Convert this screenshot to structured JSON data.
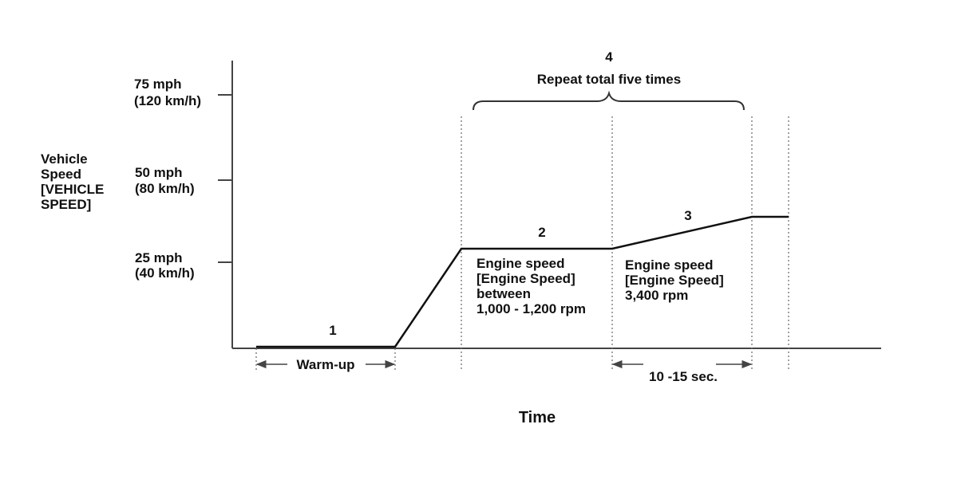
{
  "colors": {
    "line": "#111111",
    "axis": "#444444",
    "dotted": "#666666",
    "background": "#ffffff"
  },
  "axis": {
    "y_title": [
      "Vehicle",
      "Speed",
      "[VEHICLE",
      "SPEED]"
    ],
    "x_title": "Time",
    "ticks": [
      {
        "mph": "75 mph",
        "kmh": "(120 km/h)"
      },
      {
        "mph": "50 mph",
        "kmh": "(80 km/h)"
      },
      {
        "mph": "25 mph",
        "kmh": "(40 km/h)"
      }
    ]
  },
  "steps": {
    "step1": {
      "number": "1",
      "label": "Warm-up"
    },
    "step2": {
      "number": "2",
      "text": [
        "Engine speed",
        "[Engine Speed]",
        "between",
        "1,000 - 1,200 rpm"
      ]
    },
    "step3": {
      "number": "3",
      "text": [
        "Engine speed",
        "[Engine Speed]",
        "3,400 rpm"
      ]
    },
    "step4": {
      "number": "4",
      "label": "Repeat total five times"
    }
  },
  "duration": {
    "label": "10 -15 sec."
  }
}
